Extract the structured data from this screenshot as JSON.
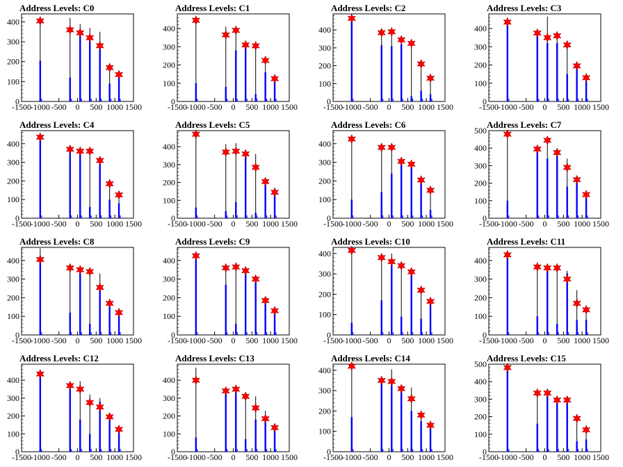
{
  "colors": {
    "hist": "#000000",
    "fill": "#0000ff",
    "marker": "#ff0000"
  },
  "chart_data": [
    {
      "title": "Address Levels: C0",
      "type": "histogram",
      "xlim": [
        -1500,
        1500
      ],
      "ylim": [
        0,
        440
      ],
      "yticks": [
        0,
        100,
        200,
        300,
        400
      ],
      "xticklabels": [
        "-1500",
        "-1000",
        "-500",
        "0",
        "500",
        "1000",
        "1500"
      ],
      "peaks": [
        {
          "x": -1000,
          "black": 410,
          "blue": 205,
          "star": 405
        },
        {
          "x": -200,
          "black": 420,
          "blue": 120,
          "star": 360
        },
        {
          "x": 70,
          "black": 390,
          "blue": 340,
          "star": 345
        },
        {
          "x": 330,
          "black": 370,
          "blue": 320,
          "star": 320
        },
        {
          "x": 600,
          "black": 350,
          "blue": 280,
          "star": 280
        },
        {
          "x": 860,
          "black": 165,
          "blue": 90,
          "star": 170
        },
        {
          "x": 1110,
          "black": 140,
          "blue": 130,
          "star": 135
        }
      ]
    },
    {
      "title": "Address Levels: C1",
      "type": "histogram",
      "xlim": [
        -1500,
        1500
      ],
      "ylim": [
        0,
        480
      ],
      "yticks": [
        0,
        100,
        200,
        300,
        400
      ],
      "xticklabels": [
        "-1500",
        "-1000",
        "-500",
        "0",
        "500",
        "1000",
        "1500"
      ],
      "peaks": [
        {
          "x": -1000,
          "black": 450,
          "blue": 100,
          "star": 445
        },
        {
          "x": -200,
          "black": 410,
          "blue": 80,
          "star": 365
        },
        {
          "x": 70,
          "black": 395,
          "blue": 280,
          "star": 390
        },
        {
          "x": 330,
          "black": 320,
          "blue": 300,
          "star": 310
        },
        {
          "x": 600,
          "black": 320,
          "blue": 40,
          "star": 305
        },
        {
          "x": 860,
          "black": 220,
          "blue": 160,
          "star": 225
        },
        {
          "x": 1110,
          "black": 130,
          "blue": 110,
          "star": 125
        }
      ]
    },
    {
      "title": "Address Levels: C2",
      "type": "histogram",
      "xlim": [
        -1500,
        1500
      ],
      "ylim": [
        0,
        490
      ],
      "yticks": [
        0,
        100,
        200,
        300,
        400
      ],
      "xticklabels": [
        "-1500",
        "-1000",
        "-500",
        "0",
        "500",
        "1000",
        "1500"
      ],
      "peaks": [
        {
          "x": -1000,
          "black": 470,
          "blue": 465,
          "star": 465
        },
        {
          "x": -200,
          "black": 390,
          "blue": 315,
          "star": 385
        },
        {
          "x": 70,
          "black": 400,
          "blue": 310,
          "star": 390
        },
        {
          "x": 330,
          "black": 355,
          "blue": 320,
          "star": 345
        },
        {
          "x": 600,
          "black": 330,
          "blue": 30,
          "star": 325
        },
        {
          "x": 860,
          "black": 215,
          "blue": 60,
          "star": 210
        },
        {
          "x": 1110,
          "black": 135,
          "blue": 40,
          "star": 130
        }
      ]
    },
    {
      "title": "Address Levels: C3",
      "type": "histogram",
      "xlim": [
        -1500,
        1500
      ],
      "ylim": [
        0,
        480
      ],
      "yticks": [
        0,
        100,
        200,
        300,
        400
      ],
      "xticklabels": [
        "-1500",
        "-1000",
        "-500",
        "0",
        "500",
        "1000",
        "1500"
      ],
      "peaks": [
        {
          "x": -1000,
          "black": 440,
          "blue": 430,
          "star": 435
        },
        {
          "x": -200,
          "black": 385,
          "blue": 370,
          "star": 375
        },
        {
          "x": 70,
          "black": 465,
          "blue": 320,
          "star": 350
        },
        {
          "x": 330,
          "black": 370,
          "blue": 320,
          "star": 360
        },
        {
          "x": 600,
          "black": 320,
          "blue": 150,
          "star": 310
        },
        {
          "x": 860,
          "black": 205,
          "blue": 190,
          "star": 195
        },
        {
          "x": 1110,
          "black": 140,
          "blue": 130,
          "star": 130
        }
      ]
    },
    {
      "title": "Address Levels: C4",
      "type": "histogram",
      "xlim": [
        -1500,
        1500
      ],
      "ylim": [
        0,
        470
      ],
      "yticks": [
        0,
        100,
        200,
        300,
        400
      ],
      "xticklabels": [
        "-1500",
        "-1000",
        "-500",
        "0",
        "500",
        "1000",
        "1500"
      ],
      "peaks": [
        {
          "x": -1000,
          "black": 440,
          "blue": 430,
          "star": 435
        },
        {
          "x": -200,
          "black": 375,
          "blue": 370,
          "star": 370
        },
        {
          "x": 70,
          "black": 370,
          "blue": 350,
          "star": 360
        },
        {
          "x": 330,
          "black": 365,
          "blue": 60,
          "star": 360
        },
        {
          "x": 600,
          "black": 315,
          "blue": 300,
          "star": 310
        },
        {
          "x": 860,
          "black": 210,
          "blue": 100,
          "star": 185
        },
        {
          "x": 1110,
          "black": 130,
          "blue": 80,
          "star": 125
        }
      ]
    },
    {
      "title": "Address Levels: C5",
      "type": "histogram",
      "xlim": [
        -1500,
        1500
      ],
      "ylim": [
        0,
        490
      ],
      "yticks": [
        0,
        100,
        200,
        300,
        400
      ],
      "xticklabels": [
        "-1500",
        "-1000",
        "-500",
        "0",
        "500",
        "1000",
        "1500"
      ],
      "peaks": [
        {
          "x": -1000,
          "black": 480,
          "blue": 60,
          "star": 470
        },
        {
          "x": -200,
          "black": 415,
          "blue": 40,
          "star": 370
        },
        {
          "x": 70,
          "black": 420,
          "blue": 90,
          "star": 375
        },
        {
          "x": 330,
          "black": 375,
          "blue": 355,
          "star": 360
        },
        {
          "x": 600,
          "black": 360,
          "blue": 30,
          "star": 285
        },
        {
          "x": 860,
          "black": 210,
          "blue": 200,
          "star": 205
        },
        {
          "x": 1110,
          "black": 150,
          "blue": 140,
          "star": 145
        }
      ]
    },
    {
      "title": "Address Levels: C6",
      "type": "histogram",
      "xlim": [
        -1500,
        1500
      ],
      "ylim": [
        0,
        470
      ],
      "yticks": [
        0,
        100,
        200,
        300,
        400
      ],
      "xticklabels": [
        "-1500",
        "-1000",
        "-500",
        "0",
        "500",
        "1000",
        "1500"
      ],
      "peaks": [
        {
          "x": -1000,
          "black": 430,
          "blue": 100,
          "star": 425
        },
        {
          "x": -200,
          "black": 385,
          "blue": 140,
          "star": 380
        },
        {
          "x": 70,
          "black": 390,
          "blue": 240,
          "star": 380
        },
        {
          "x": 330,
          "black": 320,
          "blue": 300,
          "star": 305
        },
        {
          "x": 600,
          "black": 300,
          "blue": 290,
          "star": 290
        },
        {
          "x": 860,
          "black": 210,
          "blue": 200,
          "star": 205
        },
        {
          "x": 1110,
          "black": 155,
          "blue": 45,
          "star": 150
        }
      ]
    },
    {
      "title": "Address Levels: C7",
      "type": "histogram",
      "xlim": [
        -1500,
        1500
      ],
      "ylim": [
        0,
        500
      ],
      "yticks": [
        0,
        100,
        200,
        300,
        400,
        500
      ],
      "xticklabels": [
        "-1500",
        "-1000",
        "-500",
        "0",
        "500",
        "1000",
        "1500"
      ],
      "peaks": [
        {
          "x": -1000,
          "black": 480,
          "blue": 100,
          "star": 480
        },
        {
          "x": -200,
          "black": 410,
          "blue": 395,
          "star": 395
        },
        {
          "x": 70,
          "black": 450,
          "blue": 340,
          "star": 445
        },
        {
          "x": 330,
          "black": 385,
          "blue": 370,
          "star": 375
        },
        {
          "x": 600,
          "black": 340,
          "blue": 180,
          "star": 290
        },
        {
          "x": 860,
          "black": 225,
          "blue": 210,
          "star": 220
        },
        {
          "x": 1110,
          "black": 145,
          "blue": 120,
          "star": 135
        }
      ]
    },
    {
      "title": "Address Levels: C8",
      "type": "histogram",
      "xlim": [
        -1500,
        1500
      ],
      "ylim": [
        0,
        470
      ],
      "yticks": [
        0,
        100,
        200,
        300,
        400
      ],
      "xticklabels": [
        "-1500",
        "-1000",
        "-500",
        "0",
        "500",
        "1000",
        "1500"
      ],
      "peaks": [
        {
          "x": -1000,
          "black": 465,
          "blue": 400,
          "star": 405
        },
        {
          "x": -200,
          "black": 370,
          "blue": 120,
          "star": 360
        },
        {
          "x": 70,
          "black": 360,
          "blue": 340,
          "star": 350
        },
        {
          "x": 330,
          "black": 350,
          "blue": 60,
          "star": 340
        },
        {
          "x": 600,
          "black": 330,
          "blue": 270,
          "star": 255
        },
        {
          "x": 860,
          "black": 175,
          "blue": 160,
          "star": 170
        },
        {
          "x": 1110,
          "black": 125,
          "blue": 110,
          "star": 120
        }
      ]
    },
    {
      "title": "Address Levels: C9",
      "type": "histogram",
      "xlim": [
        -1500,
        1500
      ],
      "ylim": [
        0,
        470
      ],
      "yticks": [
        0,
        100,
        200,
        300,
        400
      ],
      "xticklabels": [
        "-1500",
        "-1000",
        "-500",
        "0",
        "500",
        "1000",
        "1500"
      ],
      "peaks": [
        {
          "x": -1000,
          "black": 440,
          "blue": 420,
          "star": 425
        },
        {
          "x": -200,
          "black": 370,
          "blue": 270,
          "star": 360
        },
        {
          "x": 70,
          "black": 375,
          "blue": 60,
          "star": 365
        },
        {
          "x": 330,
          "black": 350,
          "blue": 340,
          "star": 345
        },
        {
          "x": 600,
          "black": 310,
          "blue": 290,
          "star": 300
        },
        {
          "x": 860,
          "black": 195,
          "blue": 180,
          "star": 185
        },
        {
          "x": 1110,
          "black": 135,
          "blue": 120,
          "star": 130
        }
      ]
    },
    {
      "title": "Address Levels: C10",
      "type": "histogram",
      "xlim": [
        -1500,
        1500
      ],
      "ylim": [
        0,
        430
      ],
      "yticks": [
        0,
        100,
        200,
        300,
        400
      ],
      "xticklabels": [
        "-1500",
        "-1000",
        "-500",
        "0",
        "500",
        "1000",
        "1500"
      ],
      "peaks": [
        {
          "x": -1000,
          "black": 420,
          "blue": 60,
          "star": 415
        },
        {
          "x": -200,
          "black": 390,
          "blue": 170,
          "star": 380
        },
        {
          "x": 70,
          "black": 400,
          "blue": 350,
          "star": 360
        },
        {
          "x": 330,
          "black": 340,
          "blue": 90,
          "star": 340
        },
        {
          "x": 600,
          "black": 315,
          "blue": 300,
          "star": 310
        },
        {
          "x": 860,
          "black": 225,
          "blue": 80,
          "star": 220
        },
        {
          "x": 1110,
          "black": 175,
          "blue": 160,
          "star": 165
        }
      ]
    },
    {
      "title": "Address Levels: C11",
      "type": "histogram",
      "xlim": [
        -1500,
        1500
      ],
      "ylim": [
        0,
        470
      ],
      "yticks": [
        0,
        100,
        200,
        300,
        400
      ],
      "xticklabels": [
        "-1500",
        "-1000",
        "-500",
        "0",
        "500",
        "1000",
        "1500"
      ],
      "peaks": [
        {
          "x": -1000,
          "black": 440,
          "blue": 425,
          "star": 430
        },
        {
          "x": -200,
          "black": 380,
          "blue": 100,
          "star": 365
        },
        {
          "x": 70,
          "black": 375,
          "blue": 360,
          "star": 360
        },
        {
          "x": 330,
          "black": 370,
          "blue": 60,
          "star": 360
        },
        {
          "x": 600,
          "black": 345,
          "blue": 330,
          "star": 300
        },
        {
          "x": 860,
          "black": 240,
          "blue": 80,
          "star": 170
        },
        {
          "x": 1110,
          "black": 140,
          "blue": 80,
          "star": 135
        }
      ]
    },
    {
      "title": "Address Levels: C12",
      "type": "histogram",
      "xlim": [
        -1500,
        1500
      ],
      "ylim": [
        0,
        490
      ],
      "yticks": [
        0,
        100,
        200,
        300,
        400
      ],
      "xticklabels": [
        "-1500",
        "-1000",
        "-500",
        "0",
        "500",
        "1000",
        "1500"
      ],
      "peaks": [
        {
          "x": -1000,
          "black": 440,
          "blue": 430,
          "star": 435
        },
        {
          "x": -200,
          "black": 380,
          "blue": 370,
          "star": 370
        },
        {
          "x": 70,
          "black": 395,
          "blue": 180,
          "star": 350
        },
        {
          "x": 330,
          "black": 320,
          "blue": 100,
          "star": 275
        },
        {
          "x": 600,
          "black": 300,
          "blue": 280,
          "star": 250
        },
        {
          "x": 860,
          "black": 205,
          "blue": 190,
          "star": 195
        },
        {
          "x": 1110,
          "black": 130,
          "blue": 115,
          "star": 125
        }
      ]
    },
    {
      "title": "Address Levels: C13",
      "type": "histogram",
      "xlim": [
        -1500,
        1500
      ],
      "ylim": [
        0,
        490
      ],
      "yticks": [
        0,
        100,
        200,
        300,
        400
      ],
      "xticklabels": [
        "-1500",
        "-1000",
        "-500",
        "0",
        "500",
        "1000",
        "1500"
      ],
      "peaks": [
        {
          "x": -1000,
          "black": 470,
          "blue": 80,
          "star": 400
        },
        {
          "x": -200,
          "black": 350,
          "blue": 340,
          "star": 340
        },
        {
          "x": 70,
          "black": 360,
          "blue": 340,
          "star": 350
        },
        {
          "x": 330,
          "black": 330,
          "blue": 70,
          "star": 310
        },
        {
          "x": 600,
          "black": 310,
          "blue": 180,
          "star": 245
        },
        {
          "x": 860,
          "black": 230,
          "blue": 170,
          "star": 185
        },
        {
          "x": 1110,
          "black": 145,
          "blue": 130,
          "star": 135
        }
      ]
    },
    {
      "title": "Address Levels: C14",
      "type": "histogram",
      "xlim": [
        -1500,
        1500
      ],
      "ylim": [
        0,
        430
      ],
      "yticks": [
        0,
        100,
        200,
        300,
        400
      ],
      "xticklabels": [
        "-1500",
        "-1000",
        "-500",
        "0",
        "500",
        "1000",
        "1500"
      ],
      "peaks": [
        {
          "x": -1000,
          "black": 425,
          "blue": 170,
          "star": 420
        },
        {
          "x": -200,
          "black": 365,
          "blue": 345,
          "star": 350
        },
        {
          "x": 70,
          "black": 405,
          "blue": 340,
          "star": 345
        },
        {
          "x": 330,
          "black": 315,
          "blue": 300,
          "star": 310
        },
        {
          "x": 600,
          "black": 315,
          "blue": 200,
          "star": 260
        },
        {
          "x": 860,
          "black": 200,
          "blue": 150,
          "star": 180
        },
        {
          "x": 1110,
          "black": 140,
          "blue": 125,
          "star": 130
        }
      ]
    },
    {
      "title": "Address Levels: C15",
      "type": "histogram",
      "xlim": [
        -1500,
        1500
      ],
      "ylim": [
        0,
        500
      ],
      "yticks": [
        0,
        100,
        200,
        300,
        400,
        500
      ],
      "xticklabels": [
        "-1500",
        "-1000",
        "-500",
        "0",
        "500",
        "1000",
        "1500"
      ],
      "peaks": [
        {
          "x": -1000,
          "black": 490,
          "blue": 470,
          "star": 480
        },
        {
          "x": -200,
          "black": 340,
          "blue": 160,
          "star": 335
        },
        {
          "x": 70,
          "black": 340,
          "blue": 330,
          "star": 335
        },
        {
          "x": 330,
          "black": 315,
          "blue": 290,
          "star": 295
        },
        {
          "x": 600,
          "black": 310,
          "blue": 300,
          "star": 295
        },
        {
          "x": 860,
          "black": 200,
          "blue": 60,
          "star": 190
        },
        {
          "x": 1110,
          "black": 140,
          "blue": 70,
          "star": 125
        }
      ]
    }
  ]
}
